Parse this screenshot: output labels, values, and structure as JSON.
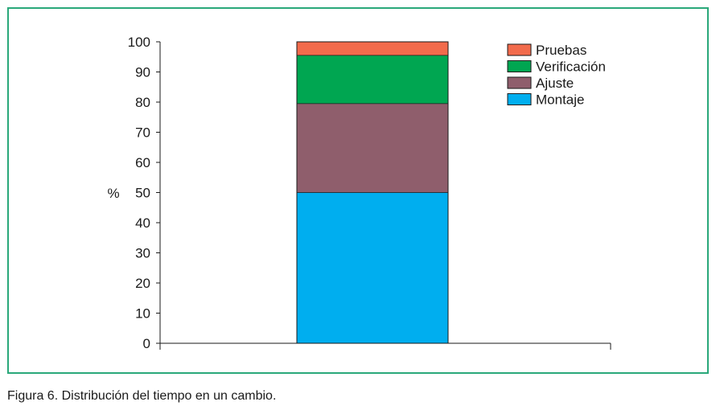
{
  "figure": {
    "caption": "Figura 6. Distribución del tiempo en un cambio.",
    "frame_color": "#2aa87a"
  },
  "chart_data": {
    "type": "bar",
    "stacked": true,
    "categories": [
      ""
    ],
    "ylabel": "%",
    "xlabel": "",
    "ylim": [
      0,
      100
    ],
    "yticks": [
      0,
      10,
      20,
      30,
      40,
      50,
      60,
      70,
      80,
      90,
      100
    ],
    "grid": false,
    "legend_position": "top-right",
    "series": [
      {
        "name": "Montaje",
        "values": [
          50
        ],
        "color": "#00aeef"
      },
      {
        "name": "Ajuste",
        "values": [
          29.5
        ],
        "color": "#8f5e6c"
      },
      {
        "name": "Verificación",
        "values": [
          16
        ],
        "color": "#00a651"
      },
      {
        "name": "Pruebas",
        "values": [
          4.5
        ],
        "color": "#f26b4c"
      }
    ],
    "legend_order": [
      "Pruebas",
      "Verificación",
      "Ajuste",
      "Montaje"
    ]
  }
}
